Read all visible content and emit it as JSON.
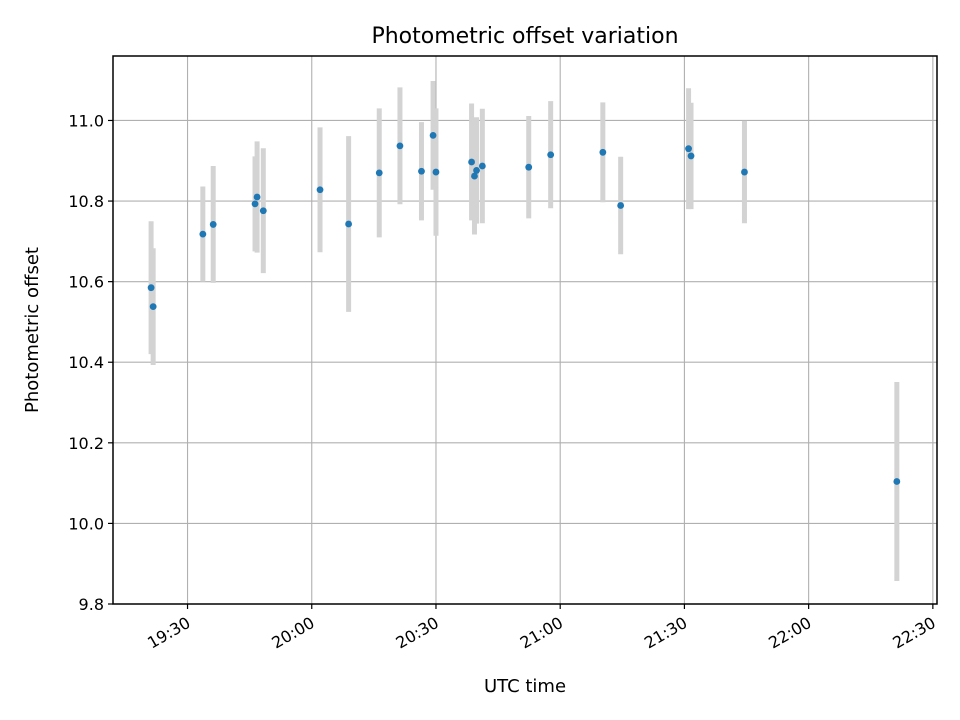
{
  "chart_data": {
    "type": "scatter",
    "title": "Photometric offset variation",
    "xlabel": "UTC time",
    "ylabel": "Photometric offset",
    "xlim": [
      "19:12",
      "22:31"
    ],
    "ylim": [
      9.8,
      11.16
    ],
    "grid": true,
    "x_ticks": [
      "19:30",
      "20:00",
      "20:30",
      "21:00",
      "21:30",
      "22:00",
      "22:30"
    ],
    "y_ticks": [
      "9.8",
      "10.0",
      "10.2",
      "10.4",
      "10.6",
      "10.8",
      "11.0"
    ],
    "y_tick_values": [
      9.8,
      10.0,
      10.2,
      10.4,
      10.6,
      10.8,
      11.0
    ],
    "colors": {
      "point": "#1f77b4",
      "errorbar": "#d3d3d3",
      "grid": "#b0b0b0",
      "axes": "#000000"
    },
    "points": [
      {
        "x": "19:21.2",
        "y": 10.585,
        "err": 0.165
      },
      {
        "x": "19:21.7",
        "y": 10.538,
        "err": 0.145
      },
      {
        "x": "19:33.7",
        "y": 10.718,
        "err": 0.118
      },
      {
        "x": "19:36.2",
        "y": 10.742,
        "err": 0.145
      },
      {
        "x": "19:46.3",
        "y": 10.793,
        "err": 0.118
      },
      {
        "x": "19:46.8",
        "y": 10.81,
        "err": 0.138
      },
      {
        "x": "19:48.3",
        "y": 10.776,
        "err": 0.155
      },
      {
        "x": "20:02.0",
        "y": 10.828,
        "err": 0.155
      },
      {
        "x": "20:08.9",
        "y": 10.743,
        "err": 0.218
      },
      {
        "x": "20:16.3",
        "y": 10.87,
        "err": 0.16
      },
      {
        "x": "20:21.3",
        "y": 10.937,
        "err": 0.145
      },
      {
        "x": "20:26.5",
        "y": 10.874,
        "err": 0.122
      },
      {
        "x": "20:29.3",
        "y": 10.963,
        "err": 0.135
      },
      {
        "x": "20:30.0",
        "y": 10.872,
        "err": 0.158
      },
      {
        "x": "20:38.6",
        "y": 10.897,
        "err": 0.145
      },
      {
        "x": "20:39.3",
        "y": 10.862,
        "err": 0.145
      },
      {
        "x": "20:39.8",
        "y": 10.876,
        "err": 0.132
      },
      {
        "x": "20:41.2",
        "y": 10.887,
        "err": 0.142
      },
      {
        "x": "20:52.4",
        "y": 10.884,
        "err": 0.127
      },
      {
        "x": "20:57.7",
        "y": 10.915,
        "err": 0.133
      },
      {
        "x": "21:10.3",
        "y": 10.921,
        "err": 0.124
      },
      {
        "x": "21:14.6",
        "y": 10.789,
        "err": 0.121
      },
      {
        "x": "21:31.0",
        "y": 10.93,
        "err": 0.15
      },
      {
        "x": "21:31.6",
        "y": 10.912,
        "err": 0.132
      },
      {
        "x": "21:44.5",
        "y": 10.872,
        "err": 0.127
      },
      {
        "x": "22:21.3",
        "y": 10.104,
        "err": 0.247
      }
    ]
  }
}
